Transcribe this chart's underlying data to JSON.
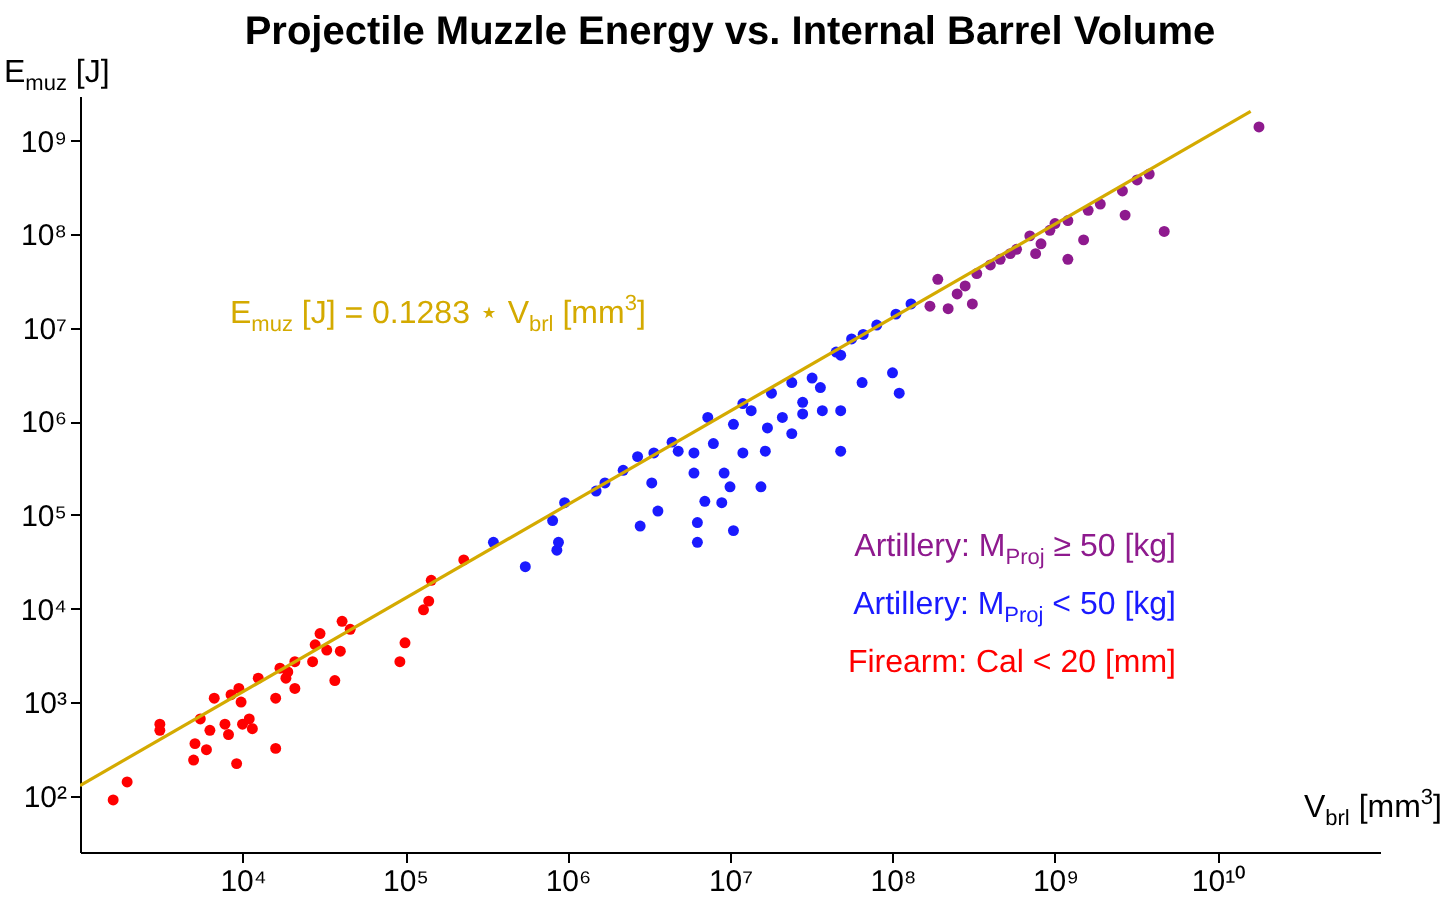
{
  "chart_data": {
    "type": "scatter",
    "title": "Projectile Muzzle Energy vs. Internal Barrel Volume",
    "xlabel": "V$_{brl}$ [mm$^{3}$]",
    "ylabel": "E$_{muz}$ [J]",
    "log": "xy",
    "marker": "circle",
    "legend": "right",
    "grid": false,
    "xlim": [
      1000,
      100000000000
    ],
    "ylim": [
      25,
      3000000000
    ],
    "xticks": [
      {
        "value": 10000,
        "label": "10⁴"
      },
      {
        "value": 100000,
        "label": "10⁵"
      },
      {
        "value": 1000000,
        "label": "10⁶"
      },
      {
        "value": 10000000,
        "label": "10⁷"
      },
      {
        "value": 100000000,
        "label": "10⁸"
      },
      {
        "value": 1000000000,
        "label": "10⁹"
      },
      {
        "value": 10000000000,
        "label": "10¹⁰"
      }
    ],
    "yticks": [
      {
        "value": 100,
        "label": "10²"
      },
      {
        "value": 1000,
        "label": "10³"
      },
      {
        "value": 10000,
        "label": "10⁴"
      },
      {
        "value": 100000,
        "label": "10⁵"
      },
      {
        "value": 1000000,
        "label": "10⁶"
      },
      {
        "value": 10000000,
        "label": "10⁷"
      },
      {
        "value": 100000000,
        "label": "10⁸"
      },
      {
        "value": 1000000000,
        "label": "10⁹"
      }
    ],
    "series": [
      {
        "name": "Artillery: M$_{Proj}$ ≥ 50 [kg]",
        "color": "#8e1a8e",
        "x": [
          190000000,
          170000000,
          250000000,
          310000000,
          330000000,
          400000000,
          460000000,
          580000000,
          700000000,
          760000000,
          930000000,
          1000000000,
          1200000000,
          1500000000,
          1600000000,
          1900000000,
          2700000000,
          2600000000,
          3200000000,
          3800000000,
          4700000000,
          18000000000,
          530000000,
          820000000,
          1200000000,
          220000000,
          280000000
        ],
        "values": [
          33000000,
          17000000,
          23000000,
          18000000,
          38000000,
          47000000,
          54000000,
          69000000,
          96000000,
          62000000,
          110000000,
          130000000,
          54000000,
          87000000,
          180000000,
          210000000,
          160000000,
          290000000,
          380000000,
          440000000,
          107000000,
          1400000000,
          62000000,
          79000000,
          140000000,
          16000000,
          28000000
        ]
      },
      {
        "name": "Artillery: M$_{Proj}$ < 50 [kg]",
        "color": "#1a1aff",
        "x": [
          350000,
          550000,
          810000,
          860000,
          880000,
          960000,
          1500000,
          2200000,
          2700000,
          2800000,
          3600000,
          3300000,
          3400000,
          4400000,
          4800000,
          6000000,
          6000000,
          6300000,
          6300000,
          7000000,
          7300000,
          7900000,
          8900000,
          9200000,
          10000000,
          10500000,
          10500000,
          12000000,
          13500000,
          15500000,
          16500000,
          17000000,
          18000000,
          21000000,
          24000000,
          28000000,
          28000000,
          32000000,
          36000000,
          37000000,
          48000000,
          48000000,
          48000000,
          56000000,
          65000000,
          80000000,
          100000000,
          110000000,
          105000000,
          130000000,
          1700000,
          12000000,
          24000000,
          45000000,
          66000000
        ],
        "values": [
          51000,
          28000,
          87000,
          42000,
          51000,
          135000,
          180000,
          300000,
          420000,
          76000,
          110000,
          220000,
          460000,
          600000,
          480000,
          460000,
          280000,
          51000,
          83000,
          140000,
          1100000,
          580000,
          135000,
          280000,
          200000,
          68000,
          930000,
          460000,
          1300000,
          200000,
          480000,
          850000,
          2000000,
          1100000,
          740000,
          1600000,
          1200000,
          2900000,
          2300000,
          1300000,
          1300000,
          480000,
          5100000,
          7600000,
          2600000,
          10700000,
          3300000,
          2000000,
          14000000,
          18000000,
          220000,
          1550000,
          2600000,
          5500000,
          8500000
        ]
      },
      {
        "name": "Firearm: Cal < 20 [mm]",
        "color": "#ff0000",
        "x": [
          1600,
          1950,
          3100,
          3100,
          5100,
          5000,
          5500,
          6000,
          6300,
          6700,
          7800,
          8200,
          8500,
          9200,
          9500,
          9800,
          10000,
          11000,
          11500,
          12500,
          16000,
          16000,
          17000,
          18500,
          19000,
          21000,
          21000,
          27000,
          28000,
          30000,
          33000,
          37000,
          41000,
          40000,
          46000,
          93000,
          100000,
          130000,
          145000,
          140000,
          230000
        ],
        "values": [
          90,
          140,
          580,
          500,
          360,
          240,
          660,
          310,
          500,
          1100,
          580,
          450,
          1200,
          220,
          1400,
          1000,
          580,
          660,
          520,
          1800,
          1100,
          320,
          2300,
          1800,
          2100,
          2700,
          1400,
          2700,
          4100,
          5400,
          3600,
          1700,
          7300,
          3500,
          6000,
          2700,
          4300,
          9700,
          20000,
          12000,
          33000
        ]
      },
      {
        "type": "line",
        "marker": "none",
        "name": "E$_{muz}$ [J] = 0.1283 ⋆ V$_{brl}$ [mm$^{3}$]",
        "color": "#d4aa00",
        "x": [
          1000,
          16000000000
        ],
        "values": [
          128.3,
          2052800000
        ]
      }
    ]
  }
}
